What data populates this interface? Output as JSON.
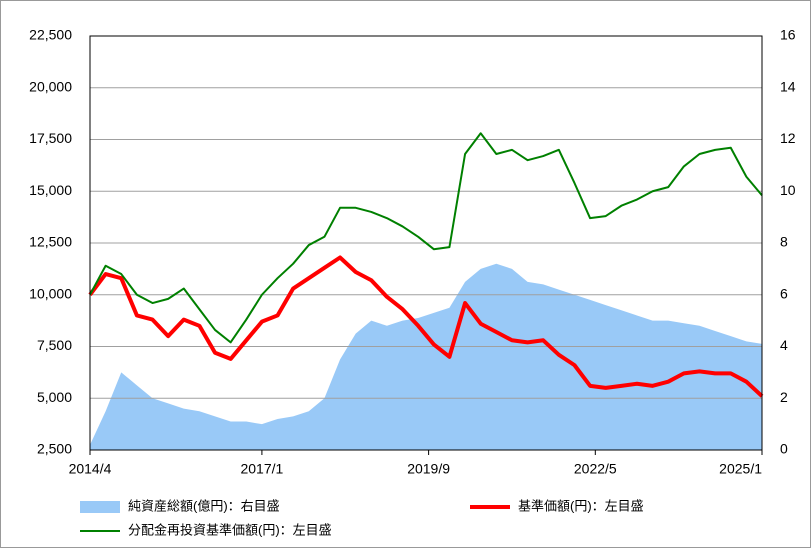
{
  "chart_data": {
    "type": "line",
    "x": [
      "2014/4",
      "2014/7",
      "2014/10",
      "2015/1",
      "2015/4",
      "2015/7",
      "2015/10",
      "2016/1",
      "2016/4",
      "2016/7",
      "2016/10",
      "2017/1",
      "2017/4",
      "2017/7",
      "2017/10",
      "2018/1",
      "2018/4",
      "2018/7",
      "2018/10",
      "2019/1",
      "2019/4",
      "2019/7",
      "2019/10",
      "2020/1",
      "2020/4",
      "2020/7",
      "2020/10",
      "2021/1",
      "2021/4",
      "2021/7",
      "2021/10",
      "2022/1",
      "2022/4",
      "2022/7",
      "2022/10",
      "2023/1",
      "2023/4",
      "2023/7",
      "2023/10",
      "2024/1",
      "2024/4",
      "2024/7",
      "2024/10",
      "2025/1"
    ],
    "series": [
      {
        "name": "純資産総額(億円)：右目盛",
        "type": "area",
        "axis": "y2",
        "color": "#99c9f7",
        "values": [
          0.2,
          1.5,
          3,
          2.5,
          2.0,
          1.8,
          1.6,
          1.5,
          1.3,
          1.1,
          1.1,
          1.0,
          1.2,
          1.3,
          1.5,
          2.0,
          3.5,
          4.5,
          5.0,
          4.8,
          5.0,
          5.1,
          5.3,
          5.5,
          6.5,
          7.0,
          7.2,
          7.0,
          6.5,
          6.4,
          6.2,
          6.0,
          5.8,
          5.6,
          5.4,
          5.2,
          5.0,
          5.0,
          4.9,
          4.8,
          4.6,
          4.4,
          4.2,
          4.1
        ]
      },
      {
        "name": "基準価額(円)：左目盛",
        "type": "line",
        "color": "#ff0000",
        "width": 4,
        "values": [
          10000,
          11000,
          10800,
          9000,
          8800,
          8000,
          8800,
          8500,
          7200,
          6900,
          7800,
          8700,
          9000,
          10300,
          10800,
          11300,
          11800,
          11100,
          10700,
          9900,
          9300,
          8500,
          7600,
          7000,
          9600,
          8600,
          8200,
          7800,
          7700,
          7800,
          7100,
          6600,
          5600,
          5500,
          5600,
          5700,
          5600,
          5800,
          6200,
          6300,
          6200,
          6200,
          5800,
          5100
        ]
      },
      {
        "name": "分配金再投資基準価額(円)：左目盛",
        "type": "line",
        "color": "#008000",
        "width": 2,
        "values": [
          10000,
          11400,
          11000,
          10000,
          9600,
          9800,
          10300,
          9300,
          8300,
          7700,
          8800,
          10000,
          10800,
          11500,
          12400,
          12800,
          14200,
          14200,
          14000,
          13700,
          13300,
          12800,
          12200,
          12300,
          16800,
          17800,
          16800,
          17000,
          16500,
          16700,
          17000,
          15400,
          13700,
          13800,
          14300,
          14600,
          15000,
          15200,
          16200,
          16800,
          17000,
          17100,
          15700,
          14800
        ]
      }
    ],
    "xlim": [
      "2014/4",
      "2025/1"
    ],
    "xticks": [
      "2014/4",
      "2017/1",
      "2019/9",
      "2022/5",
      "2025/1"
    ],
    "ylim": [
      2500,
      22500
    ],
    "yticks": [
      {
        "value": 2500,
        "label": "2,500"
      },
      {
        "value": 5000,
        "label": "5,000"
      },
      {
        "value": 7500,
        "label": "7,500"
      },
      {
        "value": 10000,
        "label": "10,000"
      },
      {
        "value": 12500,
        "label": "12,500"
      },
      {
        "value": 15000,
        "label": "15,000"
      },
      {
        "value": 17500,
        "label": "17,500"
      },
      {
        "value": 20000,
        "label": "20,000"
      },
      {
        "value": 22500,
        "label": "22,500"
      }
    ],
    "y2lim": [
      0,
      16
    ],
    "y2ticks": [
      0,
      2,
      4,
      6,
      8,
      10,
      12,
      14,
      16
    ],
    "grid": true
  }
}
